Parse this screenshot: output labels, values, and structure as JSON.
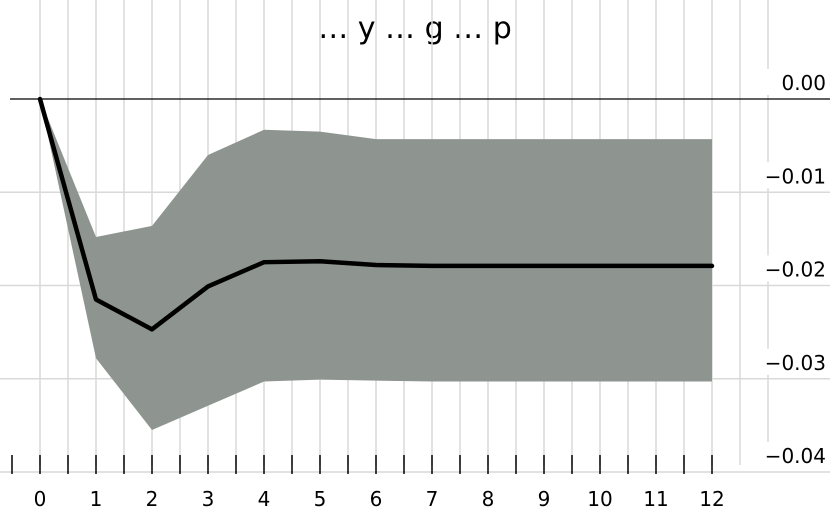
{
  "chart_data": {
    "type": "area",
    "title": "… y … g … p",
    "xlabel": "",
    "ylabel": "",
    "x": [
      0,
      1,
      2,
      3,
      4,
      5,
      6,
      7,
      8,
      9,
      10,
      11,
      12
    ],
    "xlim": [
      0,
      12
    ],
    "ylim": [
      -0.04,
      0.0
    ],
    "x_tick_labels": [
      "0",
      "1",
      "2",
      "3",
      "4",
      "5",
      "6",
      "7",
      "8",
      "9",
      "10",
      "11",
      "12"
    ],
    "y_tick_labels": [
      "0.00",
      "−0.01",
      "−0.02",
      "−0.03",
      "−0.04"
    ],
    "y_ticks": [
      0.0,
      -0.01,
      -0.02,
      -0.03,
      -0.04
    ],
    "series": [
      {
        "kind": "line",
        "color": "#000000",
        "values": [
          0.0,
          -0.0215,
          -0.0247,
          -0.0201,
          -0.0175,
          -0.0174,
          -0.0178,
          -0.0179,
          -0.0179,
          -0.0179,
          -0.0179,
          -0.0179,
          -0.0179
        ]
      },
      {
        "kind": "band",
        "color": "#8e9590",
        "upper": [
          0.0,
          -0.0148,
          -0.0136,
          -0.006,
          -0.0033,
          -0.0035,
          -0.0043,
          -0.0043,
          -0.0043,
          -0.0043,
          -0.0043,
          -0.0043,
          -0.0043
        ],
        "lower": [
          0.0,
          -0.0278,
          -0.0355,
          -0.0329,
          -0.0303,
          -0.0301,
          -0.0302,
          -0.0303,
          -0.0303,
          -0.0303,
          -0.0303,
          -0.0303,
          -0.0303
        ]
      }
    ],
    "grid": true,
    "legend": "none",
    "y_axis_position": "right",
    "zero_line": true
  }
}
